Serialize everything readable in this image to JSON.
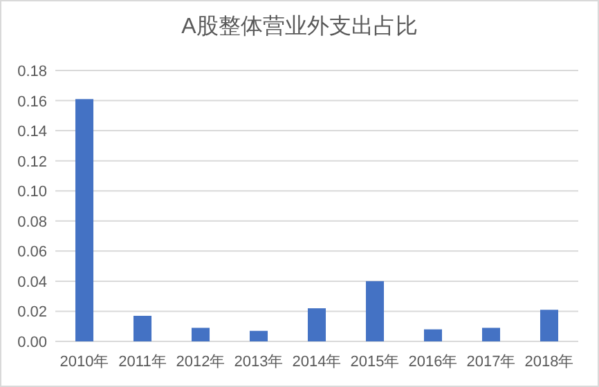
{
  "chart_data": {
    "type": "bar",
    "title": "A股整体营业外支出占比",
    "categories": [
      "2010年",
      "2011年",
      "2012年",
      "2013年",
      "2014年",
      "2015年",
      "2016年",
      "2017年",
      "2018年"
    ],
    "values": [
      0.161,
      0.017,
      0.009,
      0.007,
      0.022,
      0.04,
      0.008,
      0.009,
      0.021
    ],
    "color": "#4472c4",
    "ylim": [
      0,
      0.18
    ],
    "yticks": [
      {
        "value": 0,
        "label": "0.00"
      },
      {
        "value": 0.02,
        "label": "0.02"
      },
      {
        "value": 0.04,
        "label": "0.04"
      },
      {
        "value": 0.06,
        "label": "0.06"
      },
      {
        "value": 0.08,
        "label": "0.08"
      },
      {
        "value": 0.1,
        "label": "0.10"
      },
      {
        "value": 0.12,
        "label": "0.12"
      },
      {
        "value": 0.14,
        "label": "0.14"
      },
      {
        "value": 0.16,
        "label": "0.16"
      },
      {
        "value": 0.18,
        "label": "0.18"
      }
    ],
    "grid": "y"
  }
}
